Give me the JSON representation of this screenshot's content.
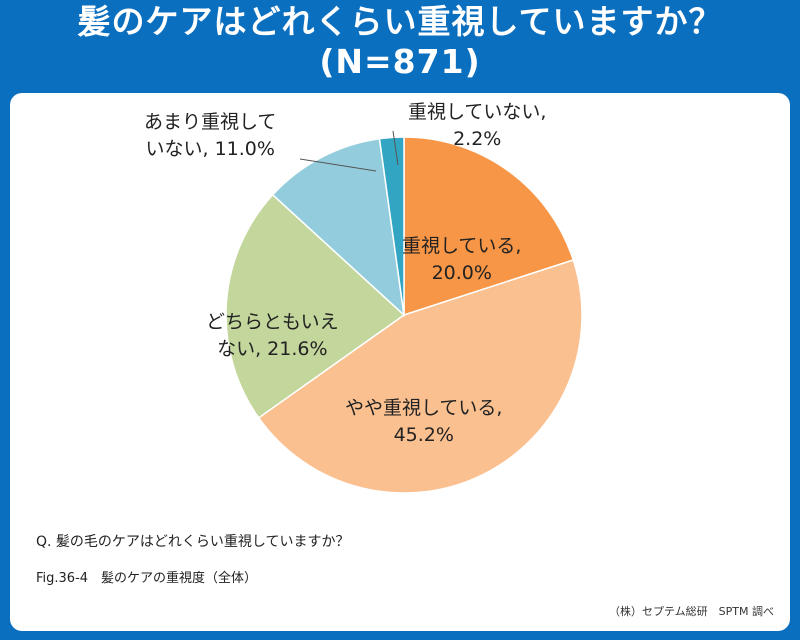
{
  "header": {
    "title_line1": "髪のケアはどれくらい重視していますか？",
    "title_line2": "(N=871)"
  },
  "colors": {
    "frame": "#0B6FC0",
    "panel": "#FFFFFF"
  },
  "chart_data": {
    "type": "pie",
    "start_angle_deg": 0,
    "direction": "clockwise",
    "slices": [
      {
        "label_line1": "重視している,",
        "label_line2": "20.0%",
        "value": 20.0,
        "color": "#F79646"
      },
      {
        "label_line1": "やや重視している,",
        "label_line2": "45.2%",
        "value": 45.2,
        "color": "#FAC090"
      },
      {
        "label_line1": "どちらともいえ",
        "label_line2": "ない, 21.6%",
        "value": 21.6,
        "color": "#C3D69B"
      },
      {
        "label_line1": "あまり重視して",
        "label_line2": "いない, 11.0%",
        "value": 11.0,
        "color": "#93CDDD"
      },
      {
        "label_line1": "重視していない,",
        "label_line2": "2.2%",
        "value": 2.2,
        "color": "#31A5C2"
      }
    ]
  },
  "footer": {
    "question": "Q. 髪の毛のケアはどれくらい重視していますか？",
    "figure": "Fig.36-4　髪のケアの重視度（全体）",
    "credit": "（株）セプテム総研　SPTM 調べ"
  }
}
